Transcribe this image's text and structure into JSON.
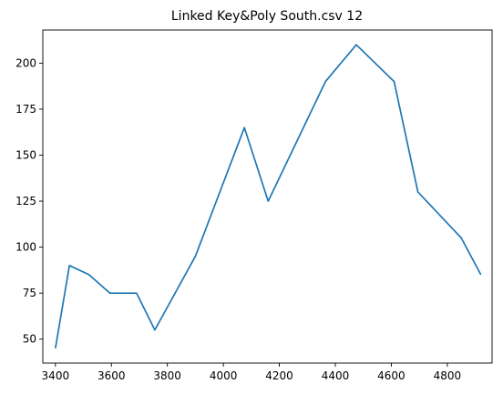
{
  "chart_data": {
    "type": "line",
    "title": "Linked Key&Poly South.csv 12",
    "xlabel": "",
    "ylabel": "",
    "xlim": [
      3355,
      4960
    ],
    "ylim": [
      37,
      218
    ],
    "x_ticks": [
      3400,
      3600,
      3800,
      4000,
      4200,
      4400,
      4600,
      4800
    ],
    "y_ticks": [
      50,
      75,
      100,
      125,
      150,
      175,
      200
    ],
    "grid": false,
    "line_color": "#1f77b4",
    "series": [
      {
        "x": [
          3400,
          3450,
          3520,
          3595,
          3690,
          3755,
          3900,
          4075,
          4160,
          4365,
          4475,
          4610,
          4695,
          4850,
          4920
        ],
        "y": [
          45,
          90,
          85,
          75,
          75,
          55,
          95,
          165,
          125,
          190,
          210,
          190,
          130,
          105,
          85
        ]
      }
    ]
  }
}
